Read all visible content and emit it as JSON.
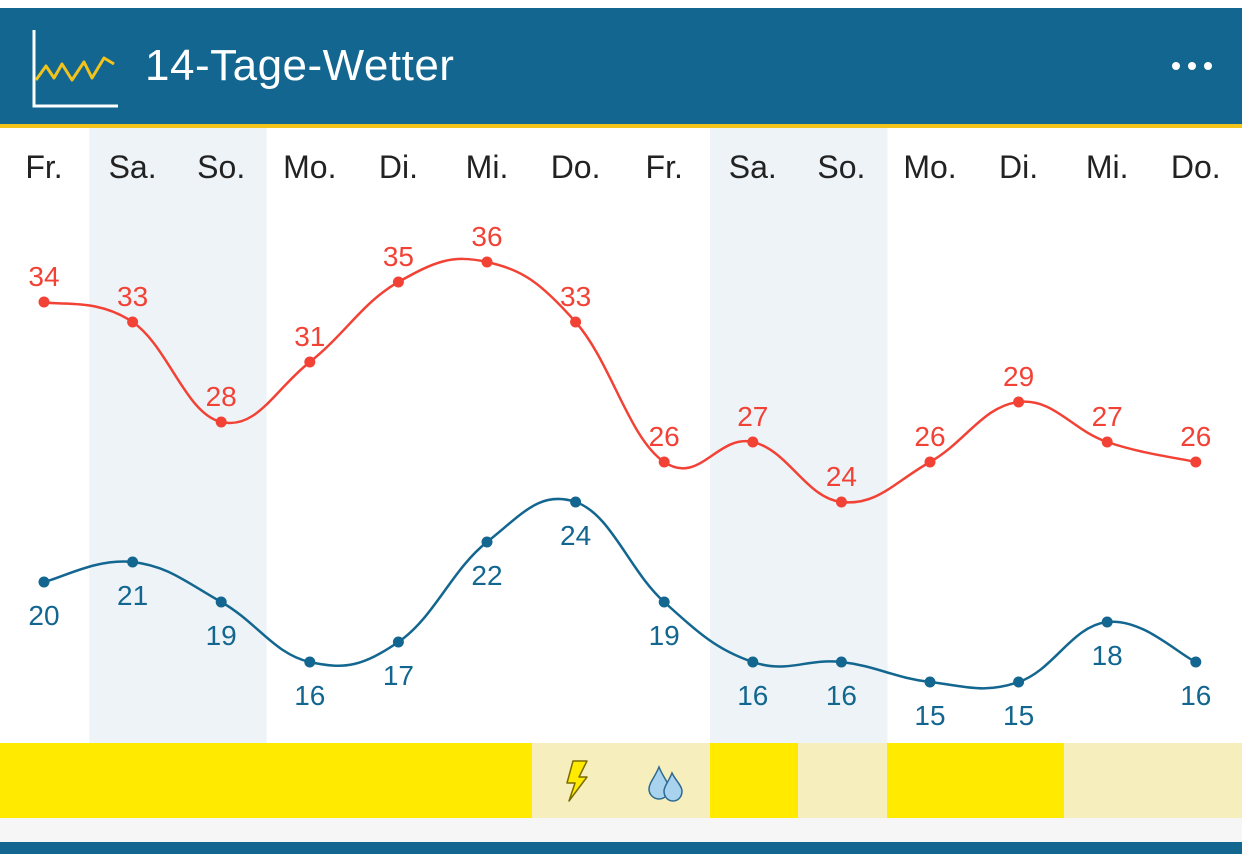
{
  "header": {
    "title": "14-Tage-Wetter",
    "logo_icon": "line-chart-icon",
    "menu_icon": "more-horizontal-icon",
    "bg_color": "#12668f",
    "accent_color": "#f2c31b"
  },
  "days": [
    "Fr.",
    "Sa.",
    "So.",
    "Mo.",
    "Di.",
    "Mi.",
    "Do.",
    "Fr.",
    "Sa.",
    "So.",
    "Mo.",
    "Di.",
    "Mi.",
    "Do."
  ],
  "weekend_indices": [
    1,
    2,
    8,
    9
  ],
  "weather_strip": [
    {
      "color": "#ffea00",
      "icon": ""
    },
    {
      "color": "#ffea00",
      "icon": ""
    },
    {
      "color": "#ffea00",
      "icon": ""
    },
    {
      "color": "#ffea00",
      "icon": ""
    },
    {
      "color": "#ffea00",
      "icon": ""
    },
    {
      "color": "#ffea00",
      "icon": ""
    },
    {
      "color": "#f6efbd",
      "icon": "thunderstorm-icon"
    },
    {
      "color": "#f6efbd",
      "icon": "rain-drops-icon"
    },
    {
      "color": "#ffea00",
      "icon": ""
    },
    {
      "color": "#f6efbd",
      "icon": ""
    },
    {
      "color": "#ffea00",
      "icon": ""
    },
    {
      "color": "#ffea00",
      "icon": ""
    },
    {
      "color": "#f6efbd",
      "icon": ""
    },
    {
      "color": "#f6efbd",
      "icon": ""
    }
  ],
  "chart_data": {
    "type": "line",
    "categories": [
      "Fr.",
      "Sa.",
      "So.",
      "Mo.",
      "Di.",
      "Mi.",
      "Do.",
      "Fr.",
      "Sa.",
      "So.",
      "Mo.",
      "Di.",
      "Mi.",
      "Do."
    ],
    "series": [
      {
        "name": "",
        "color": "#f24236",
        "values": [
          34,
          33,
          28,
          31,
          35,
          36,
          33,
          26,
          27,
          24,
          26,
          29,
          27,
          26
        ]
      },
      {
        "name": "",
        "color": "#12668f",
        "values": [
          20,
          21,
          19,
          16,
          17,
          22,
          24,
          19,
          16,
          16,
          15,
          15,
          18,
          16
        ]
      }
    ],
    "ylim": [
      13,
      38
    ],
    "grid": false,
    "title": "",
    "xlabel": "",
    "ylabel": ""
  }
}
